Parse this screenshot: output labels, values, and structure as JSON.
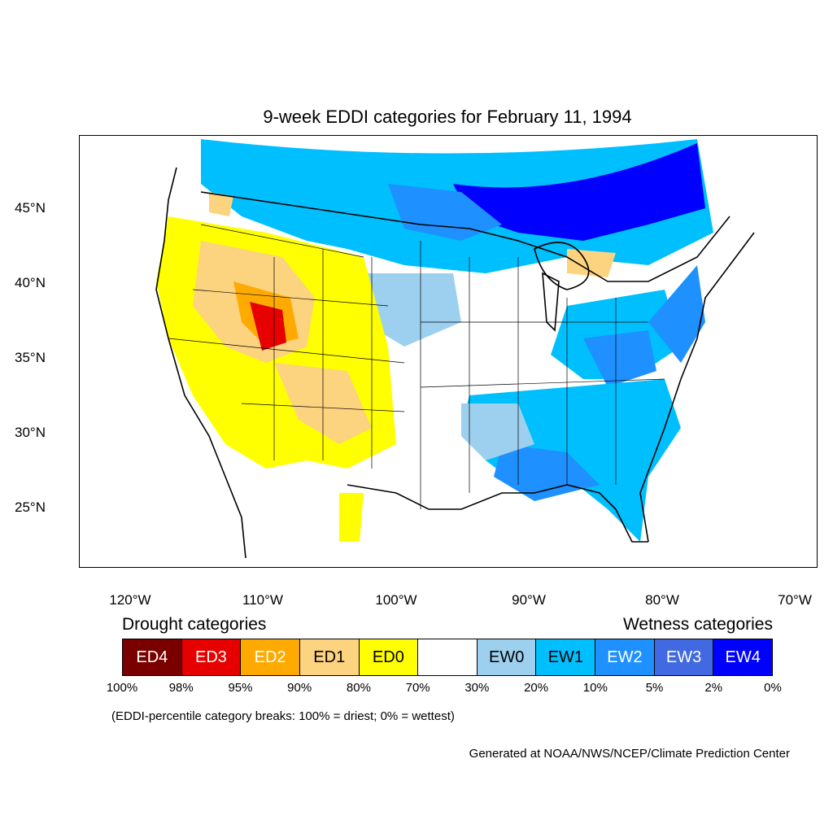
{
  "title": "9-week EDDI categories for February 11, 1994",
  "lat_labels": [
    "45°N",
    "40°N",
    "35°N",
    "30°N",
    "25°N"
  ],
  "lon_labels": [
    "120°W",
    "110°W",
    "100°W",
    "90°W",
    "80°W",
    "70°W"
  ],
  "legend": {
    "drought_heading": "Drought categories",
    "wetness_heading": "Wetness categories",
    "categories": [
      {
        "label": "ED4",
        "color": "#7a0000",
        "text_color": "#ffffff"
      },
      {
        "label": "ED3",
        "color": "#e60000",
        "text_color": "#ffffff"
      },
      {
        "label": "ED2",
        "color": "#ffaa00",
        "text_color": "#ffffff"
      },
      {
        "label": "ED1",
        "color": "#fcd37f",
        "text_color": "#000000"
      },
      {
        "label": "ED0",
        "color": "#ffff00",
        "text_color": "#000000"
      },
      {
        "label": "",
        "color": "#ffffff",
        "text_color": "#000000"
      },
      {
        "label": "EW0",
        "color": "#9dcfee",
        "text_color": "#000000"
      },
      {
        "label": "EW1",
        "color": "#00bfff",
        "text_color": "#000000"
      },
      {
        "label": "EW2",
        "color": "#1e90ff",
        "text_color": "#ffffff"
      },
      {
        "label": "EW3",
        "color": "#4169e1",
        "text_color": "#ffffff"
      },
      {
        "label": "EW4",
        "color": "#0000ff",
        "text_color": "#ffffff"
      }
    ],
    "breaks": [
      "100%",
      "98%",
      "95%",
      "90%",
      "80%",
      "70%",
      "30%",
      "20%",
      "10%",
      "5%",
      "2%",
      "0%"
    ]
  },
  "note": "(EDDI-percentile category breaks: 100% = driest; 0% = wettest)",
  "credit": "Generated at NOAA/NWS/NCEP/Climate Prediction Center"
}
